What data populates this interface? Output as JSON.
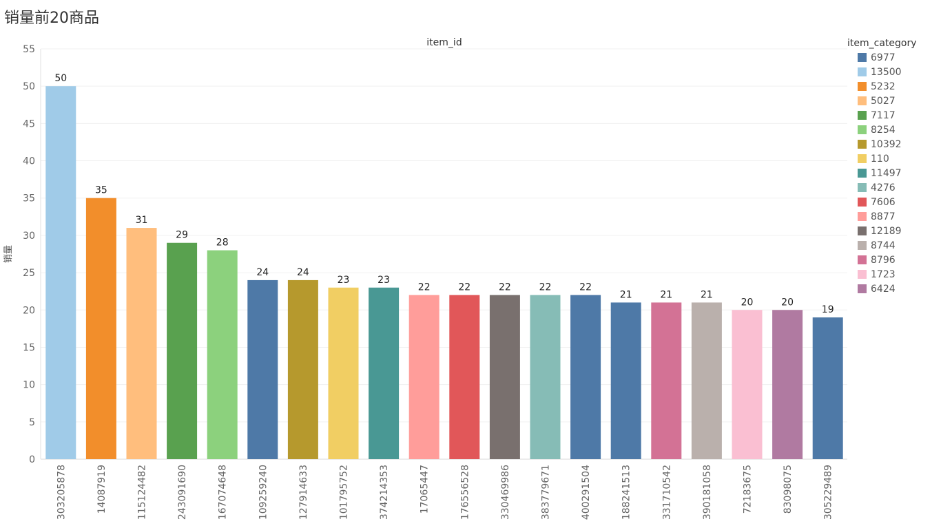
{
  "page": {
    "title": "销量前20商品"
  },
  "chart_data": {
    "type": "bar",
    "header": "item_id",
    "ylabel": "销量",
    "xlabel": "",
    "ylim": [
      0,
      55
    ],
    "yticks": [
      0,
      5,
      10,
      15,
      20,
      25,
      30,
      35,
      40,
      45,
      50,
      55
    ],
    "grid": true,
    "legend_position": "right",
    "categories": [
      "303205878",
      "14087919",
      "115124482",
      "243091690",
      "167074648",
      "109259240",
      "127914633",
      "101795752",
      "374214353",
      "17065447",
      "176556528",
      "330469986",
      "383779671",
      "400291504",
      "188241513",
      "331710542",
      "390181058",
      "72183675",
      "83098075",
      "305229489"
    ],
    "values": [
      50,
      35,
      31,
      29,
      28,
      24,
      24,
      23,
      23,
      22,
      22,
      22,
      22,
      22,
      21,
      21,
      21,
      20,
      20,
      19
    ],
    "bar_category": [
      "13500",
      "5232",
      "5027",
      "7117",
      "8254",
      "6977",
      "10392",
      "110",
      "11497",
      "8877",
      "7606",
      "12189",
      "4276",
      "6977",
      "6977",
      "8796",
      "8744",
      "1723",
      "6424",
      "6977"
    ],
    "legend": {
      "title": "item_category",
      "items": [
        {
          "label": "6977",
          "color": "#4e79a7"
        },
        {
          "label": "13500",
          "color": "#a0cbe8"
        },
        {
          "label": "5232",
          "color": "#f28e2b"
        },
        {
          "label": "5027",
          "color": "#ffbe7d"
        },
        {
          "label": "7117",
          "color": "#59a14f"
        },
        {
          "label": "8254",
          "color": "#8cd17d"
        },
        {
          "label": "10392",
          "color": "#b6992d"
        },
        {
          "label": "110",
          "color": "#f1ce63"
        },
        {
          "label": "11497",
          "color": "#499894"
        },
        {
          "label": "4276",
          "color": "#86bcb6"
        },
        {
          "label": "7606",
          "color": "#e15759"
        },
        {
          "label": "8877",
          "color": "#ff9d9a"
        },
        {
          "label": "12189",
          "color": "#79706e"
        },
        {
          "label": "8744",
          "color": "#bab0ac"
        },
        {
          "label": "8796",
          "color": "#d37295"
        },
        {
          "label": "1723",
          "color": "#fabfd2"
        },
        {
          "label": "6424",
          "color": "#b07aa1"
        }
      ]
    }
  }
}
